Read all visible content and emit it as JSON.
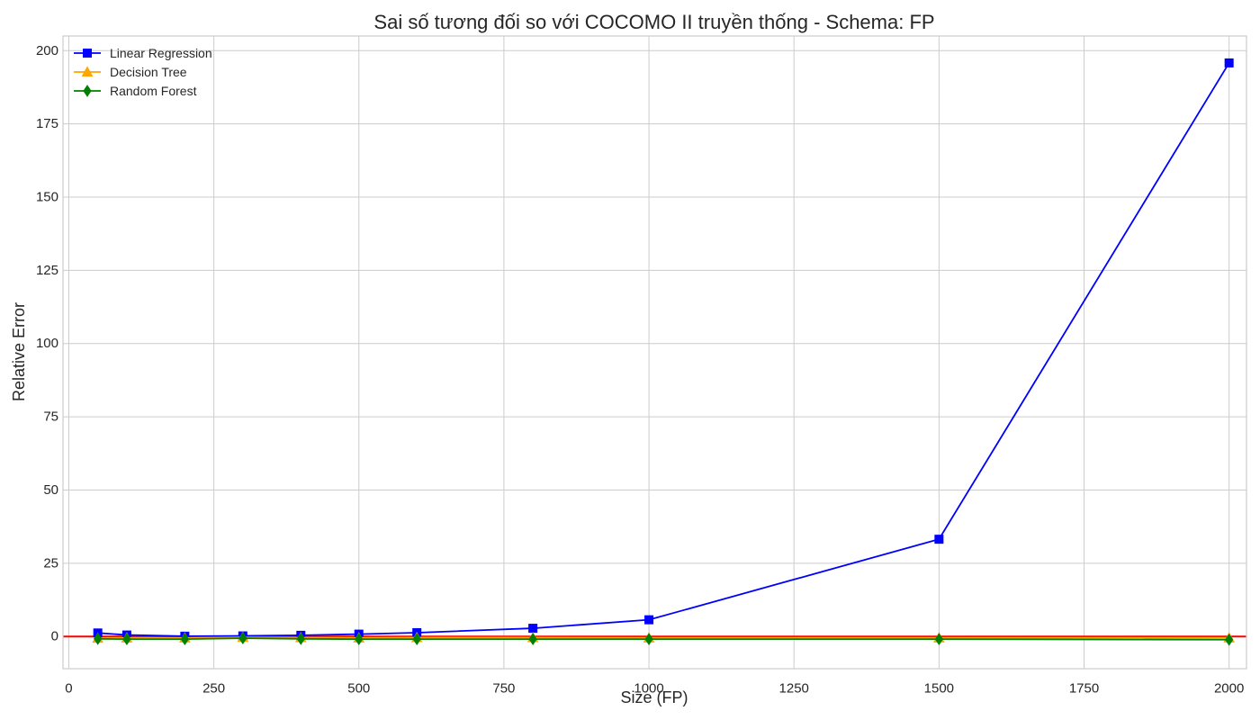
{
  "chart_data": {
    "type": "line",
    "title": "Sai số tương đối so với COCOMO II truyền thống - Schema: FP",
    "xlabel": "Size (FP)",
    "ylabel": "Relative Error",
    "xlim": [
      -10,
      2030
    ],
    "ylim": [
      -11,
      205
    ],
    "xticks": [
      0,
      250,
      500,
      750,
      1000,
      1250,
      1500,
      1750,
      2000
    ],
    "yticks": [
      0,
      25,
      50,
      75,
      100,
      125,
      150,
      175,
      200
    ],
    "grid": true,
    "legend_position": "top-left",
    "x": [
      50,
      100,
      200,
      300,
      400,
      500,
      600,
      800,
      1000,
      1500,
      2000
    ],
    "series": [
      {
        "name": "Linear Regression",
        "color": "#0000ff",
        "marker": "square",
        "values": [
          1.2,
          0.5,
          0.1,
          0.2,
          0.4,
          0.8,
          1.3,
          2.8,
          5.7,
          33.2,
          195.8
        ]
      },
      {
        "name": "Decision Tree",
        "color": "#ffa500",
        "marker": "triangle",
        "values": [
          -0.6,
          -0.5,
          -0.5,
          -0.3,
          -0.4,
          -0.5,
          -0.4,
          -0.4,
          -0.5,
          -0.5,
          -0.5
        ]
      },
      {
        "name": "Random Forest",
        "color": "#008000",
        "marker": "diamond",
        "values": [
          -0.8,
          -0.9,
          -0.9,
          -0.6,
          -0.8,
          -0.9,
          -0.9,
          -0.9,
          -0.9,
          -0.9,
          -1.1
        ]
      }
    ],
    "reference_line": {
      "y": 0,
      "color": "#ff0000"
    }
  }
}
